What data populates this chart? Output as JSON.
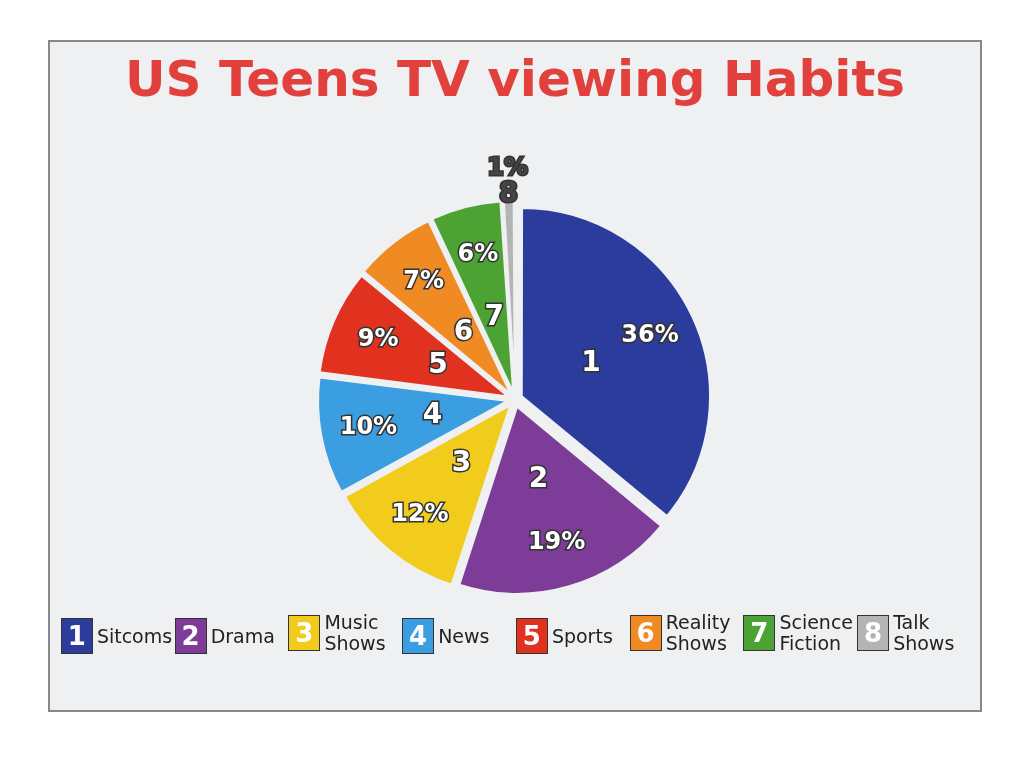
{
  "chart_data": {
    "type": "pie",
    "title": "US Teens TV viewing Habits",
    "categories": [
      "Sitcoms",
      "Drama",
      "Music Shows",
      "News",
      "Sports",
      "Reality Shows",
      "Science Fiction",
      "Talk Shows"
    ],
    "values": [
      36,
      19,
      12,
      10,
      9,
      7,
      6,
      1
    ],
    "colors": [
      "#2c3c9c",
      "#7c3c98",
      "#f2cc1c",
      "#3a9ee0",
      "#e0321e",
      "#f08a22",
      "#4ca232",
      "#b4b4b4"
    ],
    "value_labels": [
      "36%",
      "19%",
      "12%",
      "10%",
      "9%",
      "7%",
      "6%",
      "1%"
    ],
    "annotations": [
      "1",
      "2",
      "3",
      "4",
      "5",
      "6",
      "7",
      "8"
    ],
    "legend": "bottom"
  }
}
